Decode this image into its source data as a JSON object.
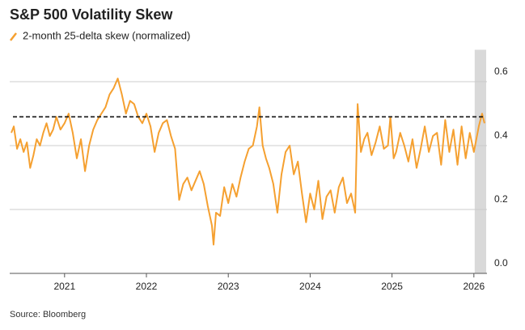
{
  "chart_data": {
    "type": "line",
    "title": "S&P 500 Volatility Skew",
    "source": "Source: Bloomberg",
    "x": [
      2020.35,
      2020.38,
      2020.42,
      2020.46,
      2020.5,
      2020.54,
      2020.58,
      2020.62,
      2020.66,
      2020.7,
      2020.74,
      2020.78,
      2020.82,
      2020.86,
      2020.9,
      2020.95,
      2021.0,
      2021.05,
      2021.1,
      2021.15,
      2021.2,
      2021.25,
      2021.3,
      2021.35,
      2021.4,
      2021.45,
      2021.5,
      2021.55,
      2021.6,
      2021.65,
      2021.7,
      2021.75,
      2021.8,
      2021.85,
      2021.9,
      2021.95,
      2022.0,
      2022.05,
      2022.1,
      2022.15,
      2022.2,
      2022.25,
      2022.3,
      2022.35,
      2022.4,
      2022.45,
      2022.5,
      2022.55,
      2022.6,
      2022.65,
      2022.7,
      2022.75,
      2022.8,
      2022.82,
      2022.85,
      2022.9,
      2022.95,
      2023.0,
      2023.05,
      2023.1,
      2023.15,
      2023.2,
      2023.25,
      2023.3,
      2023.35,
      2023.38,
      2023.42,
      2023.46,
      2023.5,
      2023.55,
      2023.6,
      2023.65,
      2023.7,
      2023.75,
      2023.8,
      2023.85,
      2023.9,
      2023.95,
      2024.0,
      2024.05,
      2024.1,
      2024.15,
      2024.2,
      2024.25,
      2024.3,
      2024.35,
      2024.4,
      2024.45,
      2024.5,
      2024.55,
      2024.58,
      2024.62,
      2024.66,
      2024.7,
      2024.75,
      2024.8,
      2024.85,
      2024.9,
      2024.95,
      2024.98,
      2025.02,
      2025.05,
      2025.1,
      2025.15,
      2025.2,
      2025.25,
      2025.3,
      2025.35,
      2025.4,
      2025.45,
      2025.5,
      2025.55,
      2025.6,
      2025.65,
      2025.7,
      2025.75,
      2025.8,
      2025.85,
      2025.9,
      2025.95,
      2026.0,
      2026.03,
      2026.06,
      2026.1,
      2026.13
    ],
    "series": [
      {
        "name": "2-month 25-delta skew (normalized)",
        "color": "#f5a030",
        "values": [
          0.44,
          0.46,
          0.39,
          0.42,
          0.38,
          0.41,
          0.33,
          0.37,
          0.42,
          0.4,
          0.44,
          0.47,
          0.43,
          0.45,
          0.49,
          0.45,
          0.47,
          0.5,
          0.44,
          0.36,
          0.42,
          0.32,
          0.4,
          0.45,
          0.48,
          0.5,
          0.52,
          0.56,
          0.58,
          0.61,
          0.56,
          0.5,
          0.54,
          0.53,
          0.49,
          0.47,
          0.5,
          0.46,
          0.38,
          0.44,
          0.47,
          0.48,
          0.43,
          0.39,
          0.23,
          0.28,
          0.3,
          0.26,
          0.29,
          0.32,
          0.28,
          0.21,
          0.15,
          0.09,
          0.19,
          0.18,
          0.27,
          0.22,
          0.28,
          0.24,
          0.3,
          0.35,
          0.39,
          0.4,
          0.46,
          0.52,
          0.4,
          0.36,
          0.33,
          0.28,
          0.19,
          0.31,
          0.38,
          0.4,
          0.31,
          0.35,
          0.25,
          0.16,
          0.25,
          0.2,
          0.29,
          0.17,
          0.24,
          0.26,
          0.19,
          0.27,
          0.3,
          0.22,
          0.25,
          0.19,
          0.53,
          0.38,
          0.42,
          0.44,
          0.37,
          0.41,
          0.46,
          0.39,
          0.4,
          0.49,
          0.36,
          0.38,
          0.44,
          0.4,
          0.35,
          0.42,
          0.33,
          0.39,
          0.46,
          0.38,
          0.43,
          0.44,
          0.34,
          0.48,
          0.38,
          0.45,
          0.34,
          0.46,
          0.36,
          0.44,
          0.38,
          0.42,
          0.46,
          0.5,
          0.47
        ]
      }
    ],
    "xlim": [
      2020.33,
      2026.16
    ],
    "xticks": [
      2021,
      2022,
      2023,
      2024,
      2025,
      2026
    ],
    "ylim": [
      0,
      0.7
    ],
    "yticks": [
      {
        "value": 0,
        "label": "0.0"
      },
      0.2,
      0.4,
      0.6
    ],
    "reference_line": 0.49,
    "shade": [
      2026.01,
      2026.15
    ],
    "grid": true
  }
}
